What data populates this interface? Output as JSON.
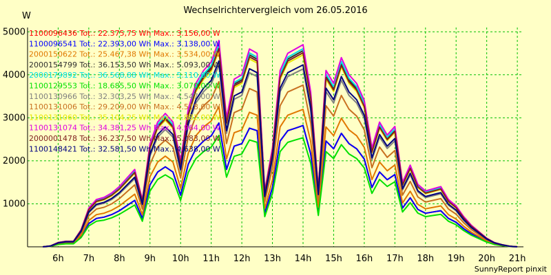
{
  "chart_data": {
    "type": "line",
    "title": "Wechselrichtervergleich vom 26.05.2016",
    "ylabel": "W",
    "xlabel": "",
    "footer": "SunnyReport pinxit",
    "ylim": [
      0,
      5100
    ],
    "xlim": [
      5.0,
      21.2
    ],
    "grid": true,
    "x_ticks": [
      {
        "v": 6,
        "label": "6h"
      },
      {
        "v": 7,
        "label": "7h"
      },
      {
        "v": 8,
        "label": "8h"
      },
      {
        "v": 9,
        "label": "9h"
      },
      {
        "v": 10,
        "label": "10h"
      },
      {
        "v": 11,
        "label": "11h"
      },
      {
        "v": 12,
        "label": "12h"
      },
      {
        "v": 13,
        "label": "13h"
      },
      {
        "v": 14,
        "label": "14h"
      },
      {
        "v": 15,
        "label": "15h"
      },
      {
        "v": 16,
        "label": "16h"
      },
      {
        "v": 17,
        "label": "17h"
      },
      {
        "v": 18,
        "label": "18h"
      },
      {
        "v": 19,
        "label": "19h"
      },
      {
        "v": 20,
        "label": "20h"
      },
      {
        "v": 21,
        "label": "21h"
      }
    ],
    "y_ticks": [
      {
        "v": 1000,
        "label": "1000"
      },
      {
        "v": 2000,
        "label": "2000"
      },
      {
        "v": 3000,
        "label": "3000"
      },
      {
        "v": 4000,
        "label": "4000"
      },
      {
        "v": 5000,
        "label": "5000"
      }
    ],
    "x": [
      5.5,
      5.75,
      6.0,
      6.25,
      6.5,
      6.75,
      7.0,
      7.25,
      7.5,
      7.75,
      8.0,
      8.25,
      8.5,
      8.75,
      9.0,
      9.25,
      9.5,
      9.75,
      10.0,
      10.25,
      10.5,
      10.75,
      11.0,
      11.25,
      11.5,
      11.75,
      12.0,
      12.25,
      12.5,
      12.75,
      13.0,
      13.25,
      13.5,
      13.75,
      14.0,
      14.25,
      14.5,
      14.75,
      15.0,
      15.25,
      15.5,
      15.75,
      16.0,
      16.25,
      16.5,
      16.75,
      17.0,
      17.25,
      17.5,
      17.75,
      18.0,
      18.25,
      18.5,
      18.75,
      19.0,
      19.25,
      19.5,
      19.75,
      20.0,
      20.25,
      20.5,
      20.75,
      21.0
    ],
    "series": [
      {
        "name": "1100096436 Tot.: 22.375,75 Wh Max.: 3.156,00 W",
        "color": "#ff0000",
        "scale": 0.6
      },
      {
        "name": "1100096541 Tot.: 22.393,00 Wh Max.: 3.138,00 W",
        "color": "#0000ff",
        "scale": 0.6
      },
      {
        "name": "2000150622 Tot.: 25.467,38 Wh Max.: 3.534,00 W",
        "color": "#e07800",
        "scale": 0.68
      },
      {
        "name": "2000154799 Tot.: 36.153,50 Wh Max.: 5.093,00 W",
        "color": "#303030",
        "scale": 0.97
      },
      {
        "name": "2000179892 Tot.: 36.568,88 Wh Max.: 5.110,00 W",
        "color": "#00e0e0",
        "scale": 0.98
      },
      {
        "name": "1100129553 Tot.: 18.685,50 Wh Max.: 3.070,00 W",
        "color": "#00e000",
        "scale": 0.54
      },
      {
        "name": "1100130966 Tot.: 32.303,25 Wh Max.: 4.547,00 W",
        "color": "#808080",
        "scale": 0.88
      },
      {
        "name": "1100131006 Tot.: 29.209,00 Wh Max.: 4.518,00 W",
        "color": "#c87020",
        "scale": 0.8
      },
      {
        "name": "1100131060 Tot.: 35.104,25 Wh Max.: 4.882,00 W",
        "color": "#e8e800",
        "scale": 0.95
      },
      {
        "name": "1100131074 Tot.: 34.381,25 Wh Max.: 4.964,00 W",
        "color": "#e000e0",
        "scale": 1.0
      },
      {
        "name": "2000001478 Tot.: 36.237,50 Wh Max.: 5.083,00 W",
        "color": "#802020",
        "scale": 0.96
      },
      {
        "name": "1100148421 Tot.: 32.581,50 Wh Max.: 4.638,00 W",
        "color": "#000080",
        "scale": 0.9
      }
    ],
    "base_profile": [
      0,
      20,
      100,
      130,
      130,
      400,
      900,
      1100,
      1150,
      1250,
      1400,
      1600,
      1800,
      1100,
      2400,
      2900,
      3100,
      2900,
      2000,
      3200,
      3800,
      4100,
      4300,
      4800,
      3000,
      3900,
      4000,
      4600,
      4500,
      1300,
      2300,
      4100,
      4500,
      4600,
      4700,
      3600,
      1350,
      4100,
      3800,
      4400,
      4000,
      3800,
      3400,
      2300,
      2900,
      2600,
      2800,
      1500,
      1900,
      1450,
      1300,
      1350,
      1400,
      1100,
      950,
      700,
      500,
      350,
      200,
      100,
      50,
      15,
      0
    ]
  }
}
